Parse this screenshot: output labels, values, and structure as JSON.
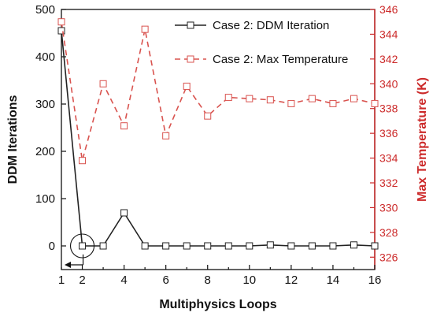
{
  "chart_data": {
    "type": "line",
    "x": [
      1,
      2,
      3,
      4,
      5,
      6,
      7,
      8,
      9,
      10,
      11,
      12,
      13,
      14,
      15,
      16
    ],
    "xlabel": "Multiphysics Loops",
    "ylabel_left": "DDM Iterations",
    "ylabel_right": "Max Temperature (K)",
    "xlim": [
      1,
      16
    ],
    "ylim_left": [
      -50,
      500
    ],
    "ylim_right": [
      325,
      346
    ],
    "x_ticks": [
      2,
      4,
      6,
      8,
      10,
      12,
      14,
      16
    ],
    "y_ticks_left": [
      0,
      100,
      200,
      300,
      400,
      500
    ],
    "y_ticks_right": [
      326,
      328,
      330,
      332,
      334,
      336,
      338,
      340,
      342,
      344,
      346
    ],
    "grid": false,
    "legend_position": "top-right",
    "series": [
      {
        "name": "Case 2: DDM Iteration",
        "axis": "left",
        "color": "#222222",
        "line_style": "solid",
        "marker": "square-open",
        "values": [
          455,
          0,
          0,
          70,
          0,
          0,
          0,
          0,
          0,
          0,
          2,
          0,
          0,
          0,
          2,
          0
        ]
      },
      {
        "name": "Case 2: Max Temperature",
        "axis": "right",
        "color": "#d9534f",
        "line_style": "dashed",
        "marker": "square-open",
        "values": [
          345,
          333.8,
          340,
          336.6,
          344.4,
          335.8,
          339.8,
          337.4,
          338.9,
          338.8,
          338.7,
          338.4,
          338.8,
          338.4,
          338.8,
          338.4
        ]
      }
    ],
    "annotations": [
      {
        "type": "circle",
        "x": 2,
        "y_left": 0,
        "note": "circle highlight"
      },
      {
        "type": "arrow",
        "from_x": 2,
        "to_x": 1,
        "y_left": -40,
        "direction": "left"
      }
    ]
  }
}
